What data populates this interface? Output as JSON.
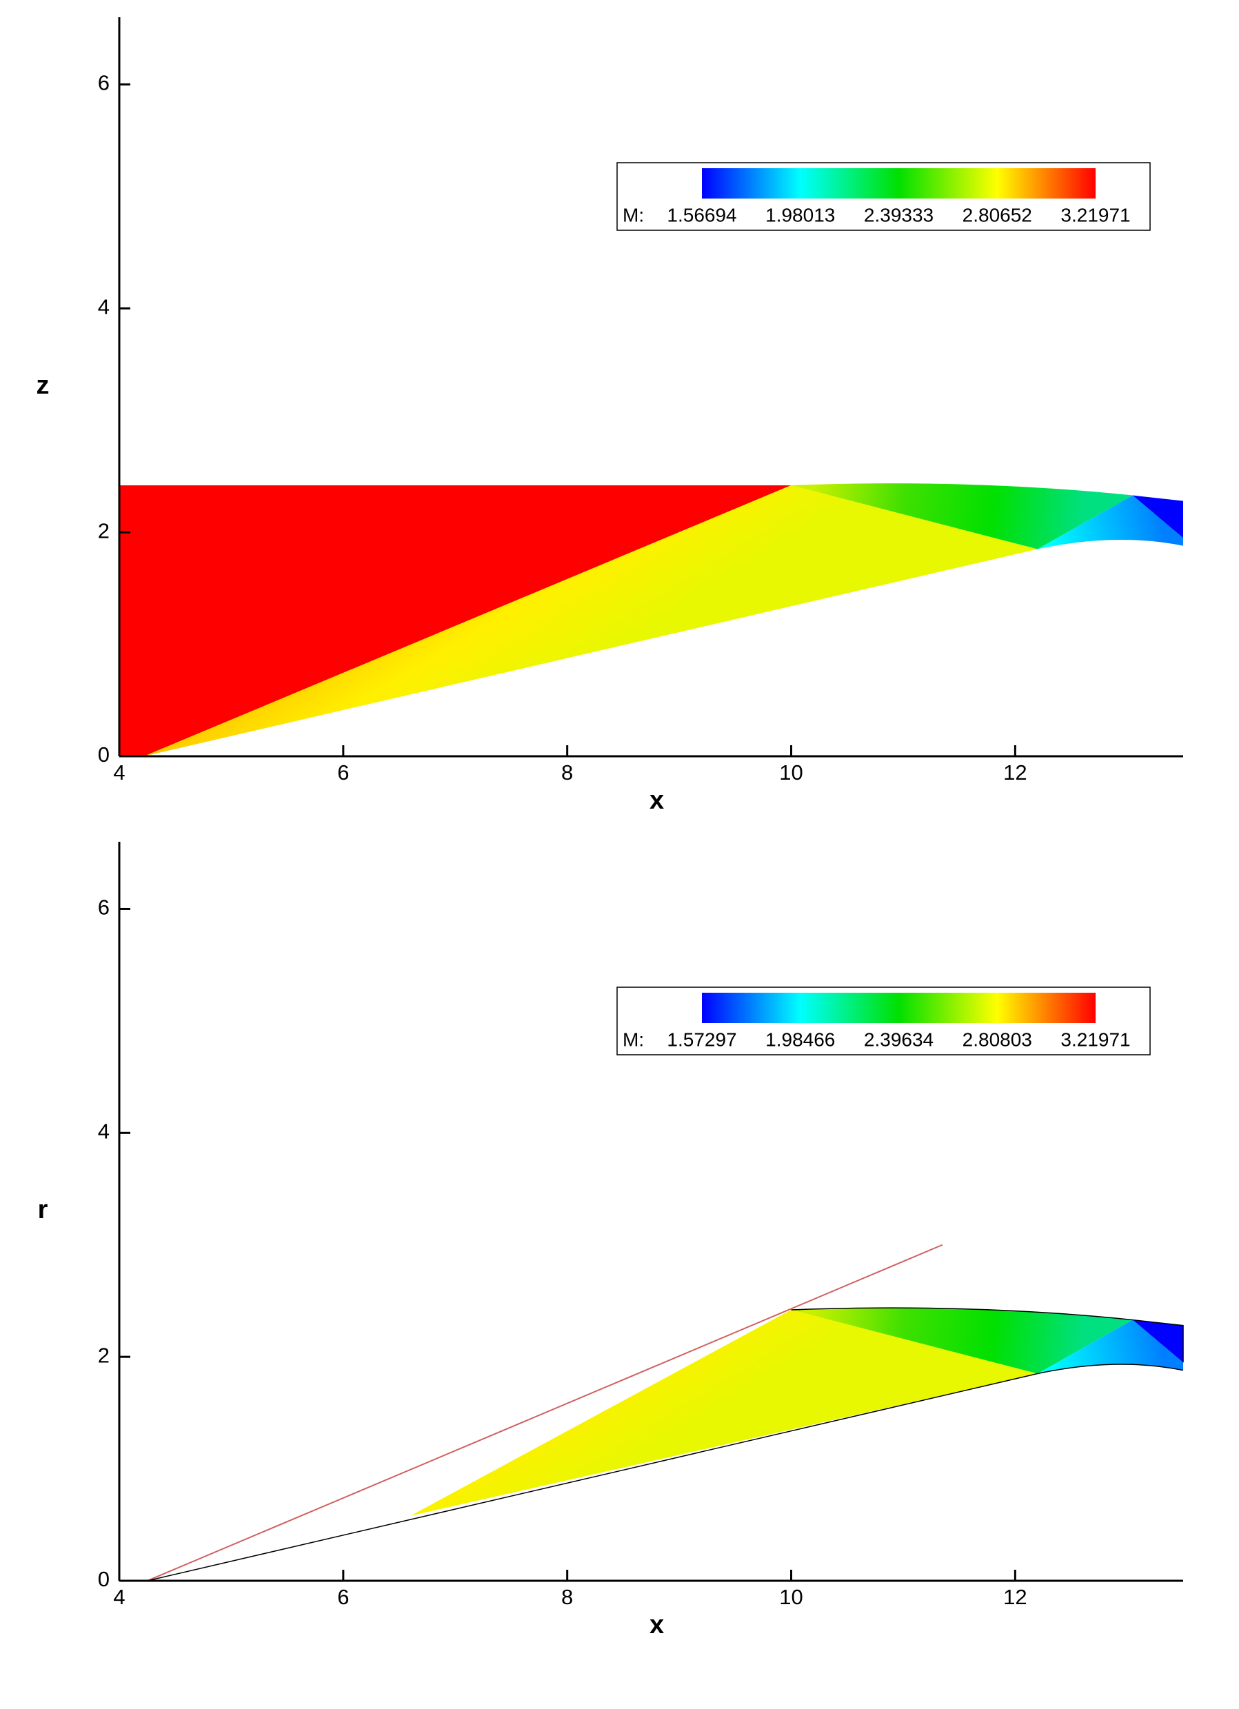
{
  "chart_data": [
    {
      "type": "contour",
      "x_label": "x",
      "y_label": "z",
      "xlim": [
        4,
        13.5
      ],
      "ylim": [
        0,
        6.6
      ],
      "xticks": [
        4,
        6,
        8,
        10,
        12
      ],
      "yticks": [
        0,
        2,
        4,
        6
      ],
      "legend": {
        "label": "M:",
        "levels": [
          1.56694,
          1.98013,
          2.39333,
          2.80652,
          3.21971
        ]
      },
      "colormap": [
        "#0000ff",
        "#00ffff",
        "#00e000",
        "#ffff00",
        "#ff0000"
      ]
    },
    {
      "type": "contour",
      "x_label": "x",
      "y_label": "r",
      "xlim": [
        4,
        13.5
      ],
      "ylim": [
        0,
        6.6
      ],
      "xticks": [
        4,
        6,
        8,
        10,
        12
      ],
      "yticks": [
        0,
        2,
        4,
        6
      ],
      "legend": {
        "label": "M:",
        "levels": [
          1.57297,
          1.98466,
          2.39634,
          2.80803,
          3.21971
        ]
      },
      "colormap": [
        "#0000ff",
        "#00ffff",
        "#00e000",
        "#ffff00",
        "#ff0000"
      ]
    }
  ]
}
